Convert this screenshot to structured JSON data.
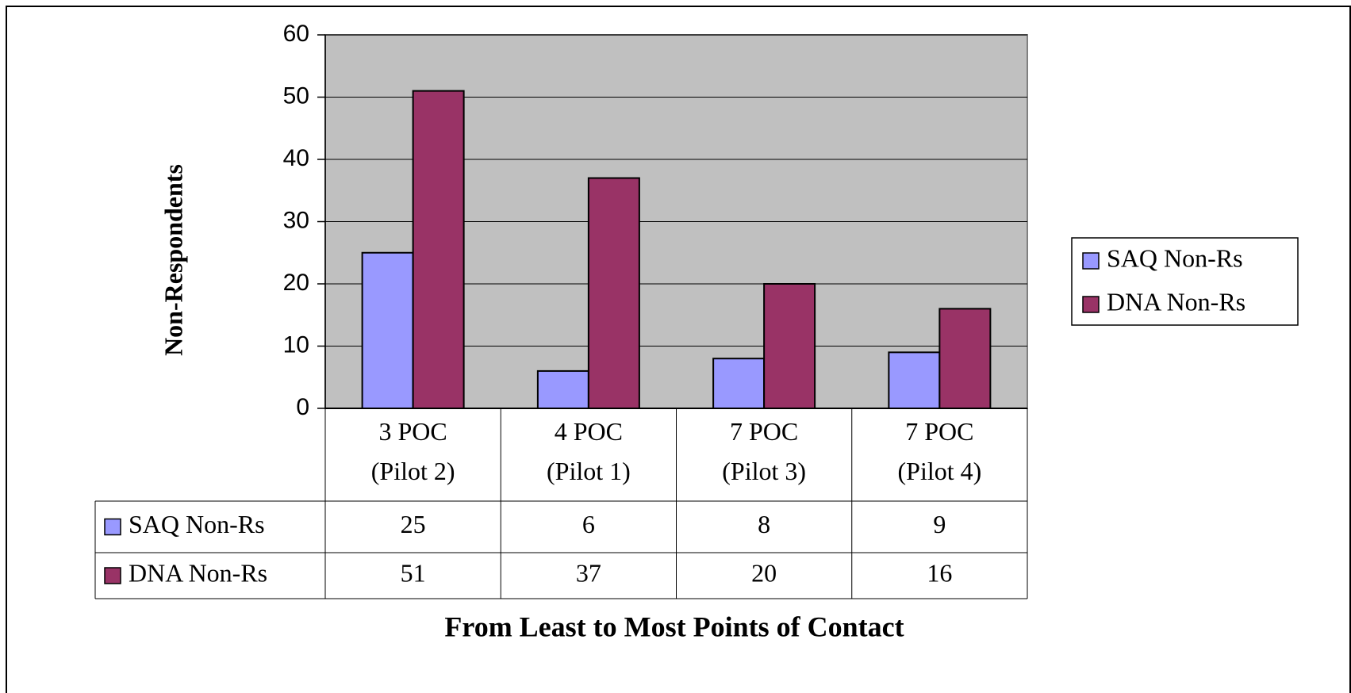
{
  "chart_data": {
    "type": "bar",
    "y_label": "Non-Respondents",
    "x_label": "From Least to Most Points of Contact",
    "categories": [
      "3 POC\n(Pilot 2)",
      "4 POC\n(Pilot 1)",
      "7 POC\n(Pilot 3)",
      "7 POC\n(Pilot 4)"
    ],
    "series": [
      {
        "name": "SAQ Non-Rs",
        "color": "#9999ff",
        "values": [
          25,
          6,
          8,
          9
        ]
      },
      {
        "name": "DNA Non-Rs",
        "color": "#993366",
        "values": [
          51,
          37,
          20,
          16
        ]
      }
    ],
    "ylim": [
      0,
      60
    ],
    "yticks": [
      0,
      10,
      20,
      30,
      40,
      50,
      60
    ],
    "grid": true,
    "legend": "right",
    "plot_background": "#c0c0c0",
    "data_table": true
  }
}
